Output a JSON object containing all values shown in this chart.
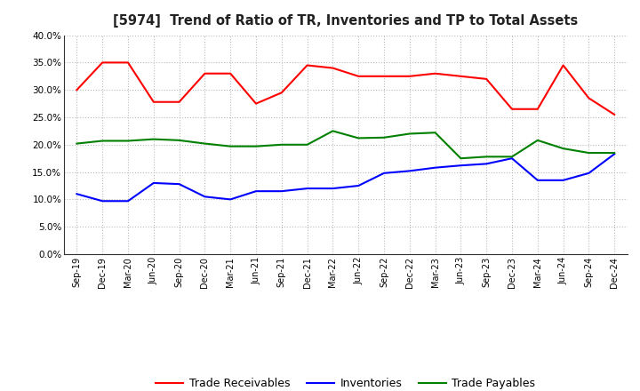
{
  "title": "[5974]  Trend of Ratio of TR, Inventories and TP to Total Assets",
  "x_labels": [
    "Sep-19",
    "Dec-19",
    "Mar-20",
    "Jun-20",
    "Sep-20",
    "Dec-20",
    "Mar-21",
    "Jun-21",
    "Sep-21",
    "Dec-21",
    "Mar-22",
    "Jun-22",
    "Sep-22",
    "Dec-22",
    "Mar-23",
    "Jun-23",
    "Sep-23",
    "Dec-23",
    "Mar-24",
    "Jun-24",
    "Sep-24",
    "Dec-24"
  ],
  "trade_receivables": [
    0.3,
    0.35,
    0.35,
    0.278,
    0.278,
    0.33,
    0.33,
    0.275,
    0.295,
    0.345,
    0.34,
    0.325,
    0.325,
    0.325,
    0.33,
    0.325,
    0.32,
    0.265,
    0.265,
    0.345,
    0.285,
    0.255
  ],
  "inventories": [
    0.11,
    0.097,
    0.097,
    0.13,
    0.128,
    0.105,
    0.1,
    0.115,
    0.115,
    0.12,
    0.12,
    0.125,
    0.148,
    0.152,
    0.158,
    0.162,
    0.165,
    0.175,
    0.135,
    0.135,
    0.148,
    0.183
  ],
  "trade_payables": [
    0.202,
    0.207,
    0.207,
    0.21,
    0.208,
    0.202,
    0.197,
    0.197,
    0.2,
    0.2,
    0.225,
    0.212,
    0.213,
    0.22,
    0.222,
    0.175,
    0.178,
    0.178,
    0.208,
    0.193,
    0.185,
    0.185
  ],
  "tr_color": "#FF0000",
  "inv_color": "#0000FF",
  "tp_color": "#008000",
  "ylim": [
    0.0,
    0.4
  ],
  "yticks": [
    0.0,
    0.05,
    0.1,
    0.15,
    0.2,
    0.25,
    0.3,
    0.35,
    0.4
  ],
  "background_color": "#FFFFFF",
  "grid_color": "#BBBBBB",
  "legend_labels": [
    "Trade Receivables",
    "Inventories",
    "Trade Payables"
  ]
}
